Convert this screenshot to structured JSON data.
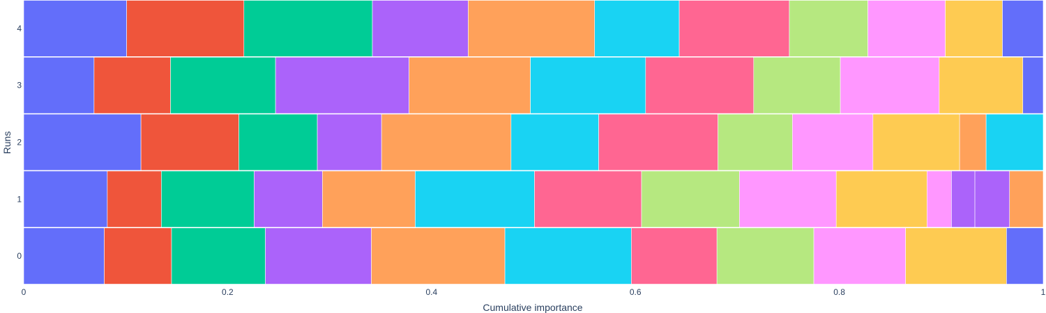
{
  "chart_data": {
    "type": "bar",
    "orientation": "horizontal",
    "stacked": true,
    "title": "",
    "xlabel": "Cumulative importance",
    "ylabel": "Runs",
    "xlim": [
      0,
      1
    ],
    "x_ticks": [
      0,
      0.2,
      0.4,
      0.6,
      0.8,
      1
    ],
    "x_tick_labels": [
      "0",
      "0.2",
      "0.4",
      "0.6",
      "0.8",
      "1"
    ],
    "categories": [
      "0",
      "1",
      "2",
      "3",
      "4"
    ],
    "legend": "none",
    "palette": [
      "#636efa",
      "#EF553B",
      "#00cc96",
      "#ab63fa",
      "#FFA15A",
      "#19d3f3",
      "#FF6692",
      "#B6E880",
      "#FF97FF",
      "#FECB52"
    ],
    "runs": [
      {
        "run": "0",
        "segments": [
          {
            "value": 0.079,
            "color": "#636efa"
          },
          {
            "value": 0.066,
            "color": "#EF553B"
          },
          {
            "value": 0.092,
            "color": "#00cc96"
          },
          {
            "value": 0.104,
            "color": "#ab63fa"
          },
          {
            "value": 0.131,
            "color": "#FFA15A"
          },
          {
            "value": 0.124,
            "color": "#19d3f3"
          },
          {
            "value": 0.084,
            "color": "#FF6692"
          },
          {
            "value": 0.095,
            "color": "#B6E880"
          },
          {
            "value": 0.09,
            "color": "#FF97FF"
          },
          {
            "value": 0.099,
            "color": "#FECB52"
          },
          {
            "value": 0.036,
            "color": "#636efa"
          }
        ]
      },
      {
        "run": "1",
        "segments": [
          {
            "value": 0.082,
            "color": "#636efa"
          },
          {
            "value": 0.053,
            "color": "#EF553B"
          },
          {
            "value": 0.091,
            "color": "#00cc96"
          },
          {
            "value": 0.067,
            "color": "#ab63fa"
          },
          {
            "value": 0.091,
            "color": "#FFA15A"
          },
          {
            "value": 0.117,
            "color": "#19d3f3"
          },
          {
            "value": 0.105,
            "color": "#FF6692"
          },
          {
            "value": 0.096,
            "color": "#B6E880"
          },
          {
            "value": 0.095,
            "color": "#FF97FF"
          },
          {
            "value": 0.089,
            "color": "#FECB52"
          },
          {
            "value": 0.024,
            "color": "#FF97FF"
          },
          {
            "value": 0.023,
            "color": "#ab63fa"
          },
          {
            "value": 0.034,
            "color": "#ab63fa"
          },
          {
            "value": 0.033,
            "color": "#FFA15A"
          }
        ]
      },
      {
        "run": "2",
        "segments": [
          {
            "value": 0.115,
            "color": "#636efa"
          },
          {
            "value": 0.096,
            "color": "#EF553B"
          },
          {
            "value": 0.077,
            "color": "#00cc96"
          },
          {
            "value": 0.063,
            "color": "#ab63fa"
          },
          {
            "value": 0.127,
            "color": "#FFA15A"
          },
          {
            "value": 0.086,
            "color": "#19d3f3"
          },
          {
            "value": 0.117,
            "color": "#FF6692"
          },
          {
            "value": 0.073,
            "color": "#B6E880"
          },
          {
            "value": 0.079,
            "color": "#FF97FF"
          },
          {
            "value": 0.085,
            "color": "#FECB52"
          },
          {
            "value": 0.026,
            "color": "#FFA15A"
          },
          {
            "value": 0.056,
            "color": "#19d3f3"
          }
        ]
      },
      {
        "run": "3",
        "segments": [
          {
            "value": 0.069,
            "color": "#636efa"
          },
          {
            "value": 0.075,
            "color": "#EF553B"
          },
          {
            "value": 0.103,
            "color": "#00cc96"
          },
          {
            "value": 0.131,
            "color": "#ab63fa"
          },
          {
            "value": 0.119,
            "color": "#FFA15A"
          },
          {
            "value": 0.113,
            "color": "#19d3f3"
          },
          {
            "value": 0.106,
            "color": "#FF6692"
          },
          {
            "value": 0.085,
            "color": "#B6E880"
          },
          {
            "value": 0.097,
            "color": "#FF97FF"
          },
          {
            "value": 0.082,
            "color": "#FECB52"
          },
          {
            "value": 0.02,
            "color": "#636efa"
          }
        ]
      },
      {
        "run": "4",
        "segments": [
          {
            "value": 0.101,
            "color": "#636efa"
          },
          {
            "value": 0.115,
            "color": "#EF553B"
          },
          {
            "value": 0.126,
            "color": "#00cc96"
          },
          {
            "value": 0.094,
            "color": "#ab63fa"
          },
          {
            "value": 0.124,
            "color": "#FFA15A"
          },
          {
            "value": 0.083,
            "color": "#19d3f3"
          },
          {
            "value": 0.108,
            "color": "#FF6692"
          },
          {
            "value": 0.077,
            "color": "#B6E880"
          },
          {
            "value": 0.076,
            "color": "#FF97FF"
          },
          {
            "value": 0.056,
            "color": "#FECB52"
          },
          {
            "value": 0.04,
            "color": "#636efa"
          }
        ]
      }
    ]
  }
}
